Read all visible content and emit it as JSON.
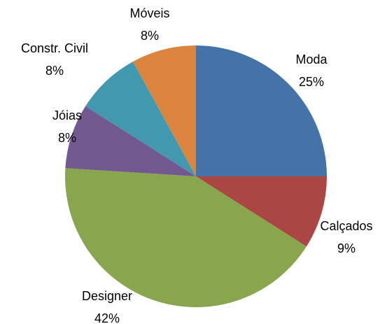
{
  "chart_data": {
    "type": "pie",
    "categories": [
      "Moda",
      "Calçados",
      "Designer",
      "Jóias",
      "Constr. Civil",
      "Móveis"
    ],
    "values": [
      25,
      9,
      42,
      8,
      8,
      8
    ],
    "value_labels": [
      "25%",
      "9%",
      "42%",
      "8%",
      "8%",
      "8%"
    ],
    "colors": [
      "#4572a7",
      "#aa4643",
      "#89a54e",
      "#71588f",
      "#4198af",
      "#db843d"
    ]
  }
}
